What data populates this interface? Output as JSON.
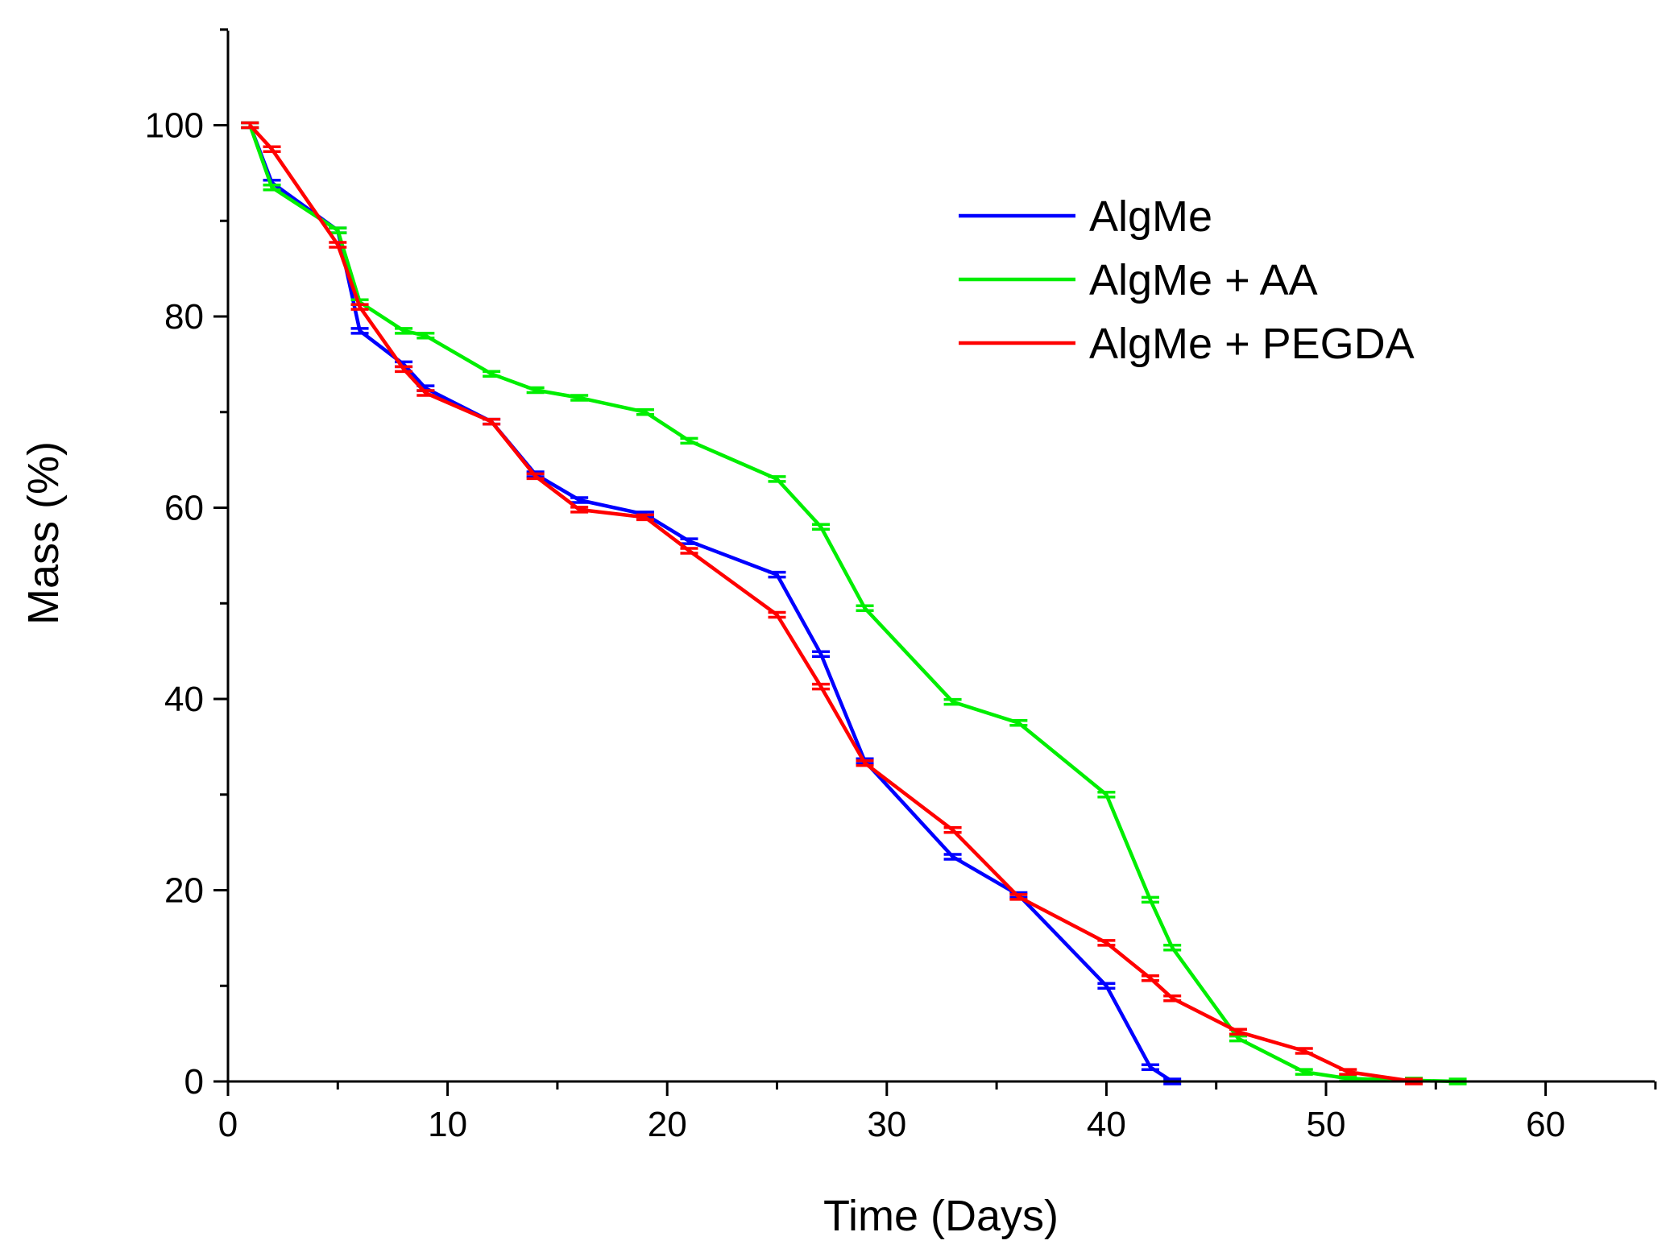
{
  "chart_data": {
    "type": "line",
    "title": "",
    "xlabel": "Time (Days)",
    "ylabel": "Mass (%)",
    "xlim": [
      0,
      65
    ],
    "ylim": [
      0,
      110
    ],
    "xticks": [
      0,
      10,
      20,
      30,
      40,
      50,
      60
    ],
    "yticks": [
      0,
      20,
      40,
      60,
      80,
      100
    ],
    "legend_position": "top-right",
    "grid": false,
    "error_bars": true,
    "series": [
      {
        "name": "AlgMe",
        "color": "#0000ff",
        "x": [
          1,
          2,
          5,
          6,
          8,
          9,
          12,
          14,
          16,
          19,
          21,
          25,
          27,
          29,
          33,
          36,
          40,
          42,
          43
        ],
        "y": [
          100,
          94,
          89,
          78.5,
          75,
          72.5,
          69,
          63.5,
          60.8,
          59.3,
          56.5,
          53,
          44.7,
          33.5,
          23.5,
          19.5,
          10,
          1.5,
          0
        ]
      },
      {
        "name": "AlgMe + AA",
        "color": "#00ee00",
        "x": [
          1,
          2,
          5,
          6,
          8,
          9,
          12,
          14,
          16,
          19,
          21,
          25,
          27,
          29,
          33,
          36,
          40,
          42,
          43,
          46,
          49,
          51,
          54,
          56
        ],
        "y": [
          100,
          93.5,
          89,
          81.5,
          78.5,
          78,
          74,
          72.3,
          71.5,
          70,
          67,
          63,
          58,
          49.5,
          39.7,
          37.5,
          30,
          19,
          14,
          4.5,
          1,
          0.3,
          0.1,
          0
        ]
      },
      {
        "name": "AlgMe + PEGDA",
        "color": "#ff0000",
        "x": [
          1,
          2,
          5,
          6,
          8,
          9,
          12,
          14,
          16,
          19,
          21,
          25,
          27,
          29,
          33,
          36,
          40,
          42,
          43,
          46,
          49,
          51,
          54
        ],
        "y": [
          100,
          97.5,
          87.5,
          81,
          74.5,
          72,
          69,
          63.3,
          59.8,
          59,
          55.5,
          48.8,
          41.3,
          33.3,
          26.3,
          19.3,
          14.5,
          10.8,
          8.7,
          5.2,
          3.2,
          1,
          0
        ]
      }
    ]
  }
}
